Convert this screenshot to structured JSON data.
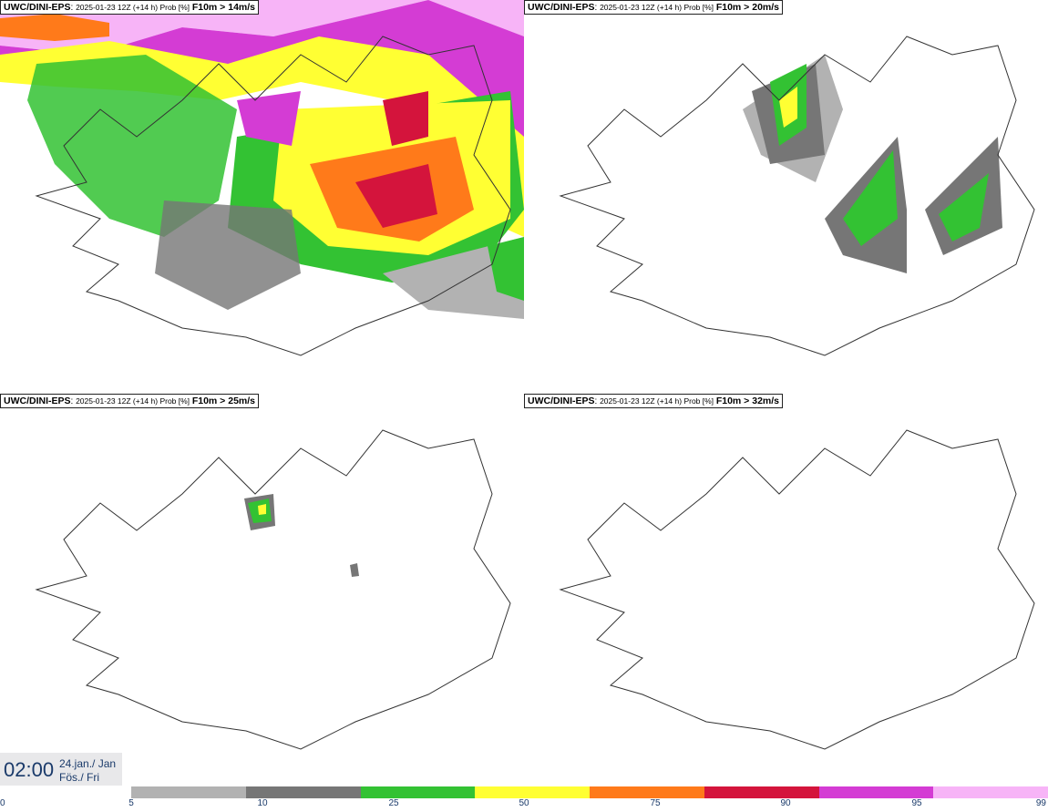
{
  "panels": [
    {
      "model": "UWC/DINI-EPS",
      "meta": "2025-01-23 12Z (+14 h) Prob [%]",
      "field": "F10m > 14m/s"
    },
    {
      "model": "UWC/DINI-EPS",
      "meta": "2025-01-23 12Z (+14 h) Prob [%]",
      "field": "F10m > 20m/s"
    },
    {
      "model": "UWC/DINI-EPS",
      "meta": "2025-01-23 12Z (+14 h) Prob [%]",
      "field": "F10m > 25m/s"
    },
    {
      "model": "UWC/DINI-EPS",
      "meta": "2025-01-23 12Z (+14 h) Prob [%]",
      "field": "F10m > 32m/s"
    }
  ],
  "time": {
    "clock": "02:00",
    "date": "24.jan./ Jan",
    "day": "Fös./ Fri"
  },
  "colorbar": {
    "ticks": [
      "0",
      "5",
      "10",
      "25",
      "50",
      "75",
      "90",
      "95",
      "99"
    ],
    "colors": [
      "#b2b2b2",
      "#767676",
      "#33c233",
      "#ffff33",
      "#ff7a1a",
      "#d4143c",
      "#d43cd4",
      "#f7b4f7"
    ]
  }
}
